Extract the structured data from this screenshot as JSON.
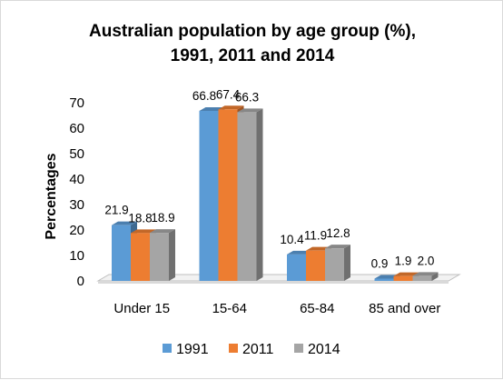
{
  "chart_data": {
    "type": "bar",
    "title_line1": "Australian population by age group (%),",
    "title_line2": "1991, 2011 and 2014",
    "ylabel": "Percentages",
    "xlabel": "",
    "ylim": [
      0,
      70
    ],
    "yticks": [
      0,
      10,
      20,
      30,
      40,
      50,
      60,
      70
    ],
    "categories": [
      "Under 15",
      "15-64",
      "65-84",
      "85 and over"
    ],
    "series": [
      {
        "name": "1991",
        "color": "#5b9bd5",
        "values": [
          21.9,
          66.8,
          10.4,
          0.9
        ],
        "labels": [
          "21.9",
          "66.8",
          "10.4",
          "0.9"
        ]
      },
      {
        "name": "2011",
        "color": "#ed7d31",
        "values": [
          18.8,
          67.4,
          11.9,
          1.9
        ],
        "labels": [
          "18.8",
          "67.4",
          "11.9",
          "1.9"
        ]
      },
      {
        "name": "2014",
        "color": "#a5a5a5",
        "values": [
          18.9,
          66.3,
          12.8,
          2.0
        ],
        "labels": [
          "18.9",
          "66.3",
          "12.8",
          "2.0"
        ]
      }
    ],
    "legend_position": "bottom",
    "grid": false,
    "style": "3d-clustered-column"
  }
}
